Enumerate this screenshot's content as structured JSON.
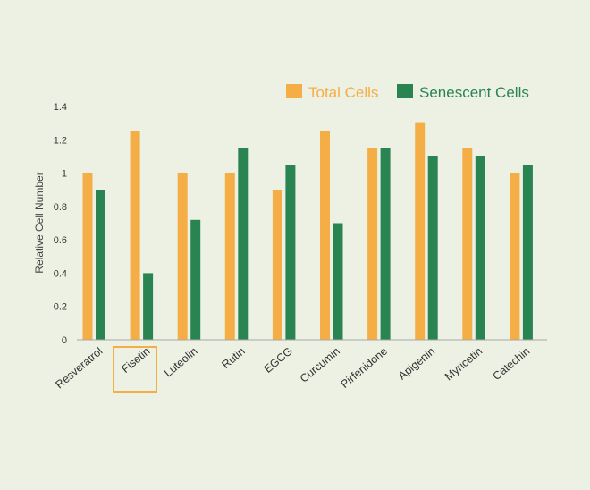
{
  "chart_data": {
    "type": "bar",
    "categories": [
      "Resveratrol",
      "Fisetin",
      "Luteolin",
      "Rutin",
      "EGCG",
      "Curcumin",
      "Pirfenidone",
      "Apigenin",
      "Myricetin",
      "Catechin"
    ],
    "series": [
      {
        "name": "Total Cells",
        "color": "#f5ae45",
        "values": [
          1.0,
          1.25,
          1.0,
          1.0,
          0.9,
          1.25,
          1.15,
          1.3,
          1.15,
          1.0
        ]
      },
      {
        "name": "Senescent Cells",
        "color": "#2a8452",
        "values": [
          0.9,
          0.4,
          0.72,
          1.15,
          1.05,
          0.7,
          1.15,
          1.1,
          1.1,
          1.05
        ]
      }
    ],
    "ylabel": "Relative Cell Number",
    "ylim": [
      0,
      1.4
    ],
    "yticks": [
      "0",
      "0.2",
      "0.4",
      "0.6",
      "0.8",
      "1",
      "1.2",
      "1.4"
    ],
    "grid": false,
    "legend_position": "top-right",
    "highlighted_category": "Fisetin",
    "highlight_color": "#f5ae45"
  }
}
